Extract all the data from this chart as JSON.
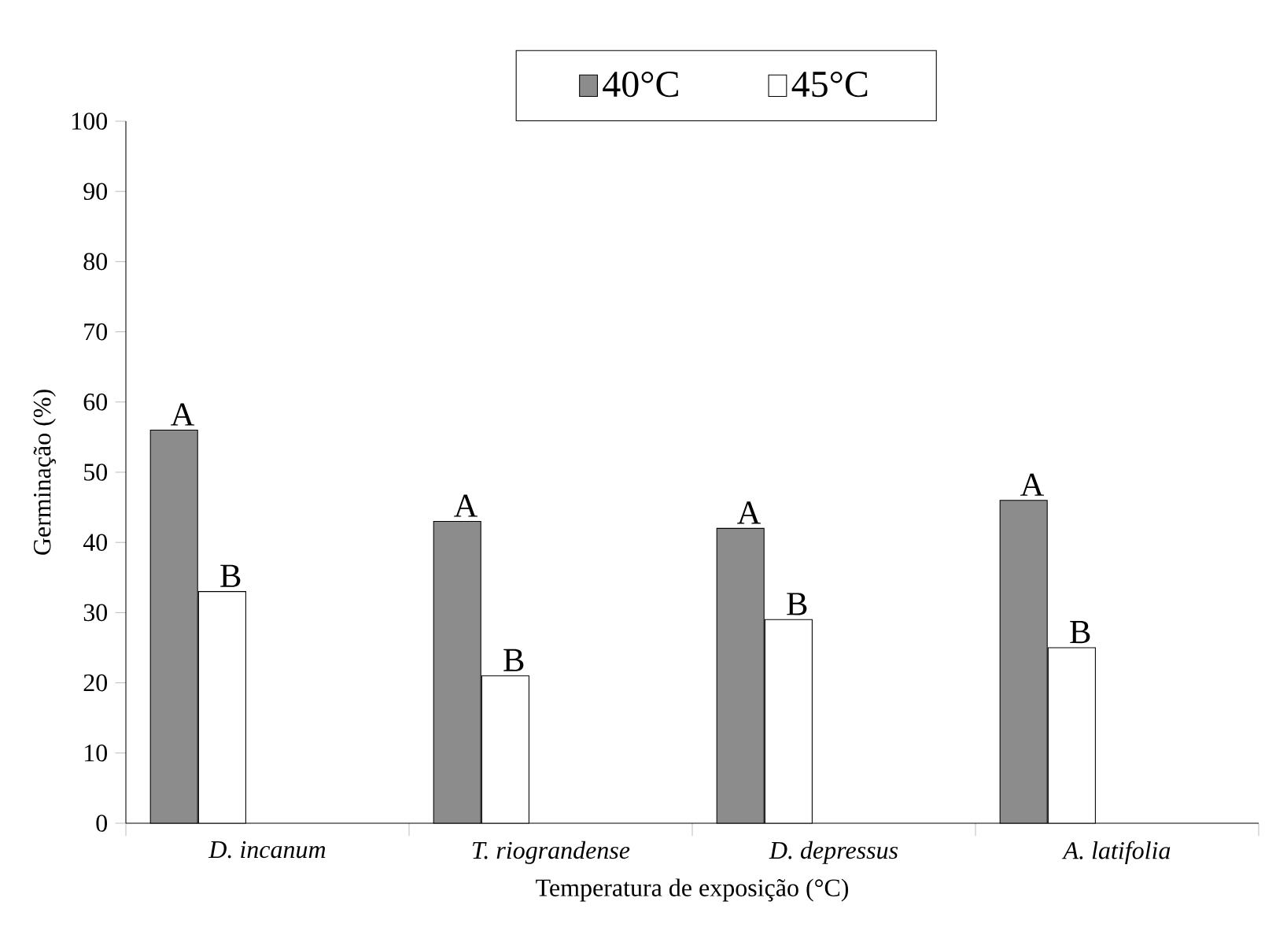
{
  "chart_data": {
    "type": "bar",
    "xlabel": "Temperatura  de exposição (°C)",
    "ylabel": "Germinação (%)",
    "categories": [
      "D. incanum",
      "T. riograndense",
      "D. depressus",
      "A. latifolia"
    ],
    "series": [
      {
        "name": "40°C",
        "color": "#8c8c8c",
        "values": [
          56,
          43,
          42,
          46
        ]
      },
      {
        "name": "45°C",
        "color": "#ffffff",
        "values": [
          33,
          21,
          29,
          25
        ]
      }
    ],
    "ylim": [
      0,
      100
    ],
    "yticks": [
      0,
      10,
      20,
      30,
      40,
      50,
      60,
      70,
      80,
      90,
      100
    ],
    "grid": false,
    "legend": "top",
    "annotations": [
      "A",
      "B",
      "A",
      "B",
      "A",
      "B",
      "A",
      "B"
    ]
  }
}
